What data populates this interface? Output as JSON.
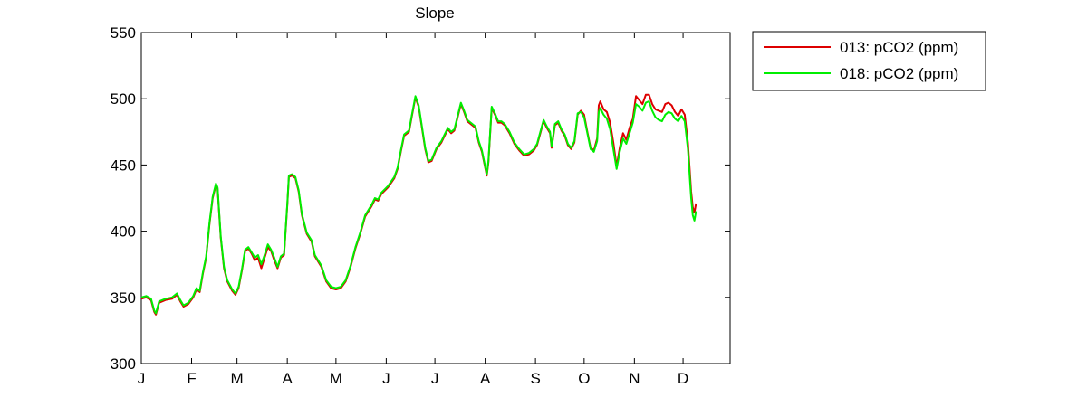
{
  "chart_data": {
    "type": "line",
    "title": "Slope",
    "xlabel": "",
    "ylabel": "",
    "xlim": [
      1,
      364
    ],
    "ylim": [
      300,
      550
    ],
    "yticks": [
      300,
      350,
      400,
      450,
      500,
      550
    ],
    "xticks": [
      {
        "day": 1,
        "label": "J"
      },
      {
        "day": 32,
        "label": "F"
      },
      {
        "day": 60,
        "label": "M"
      },
      {
        "day": 91,
        "label": "A"
      },
      {
        "day": 121,
        "label": "M"
      },
      {
        "day": 152,
        "label": "J"
      },
      {
        "day": 182,
        "label": "J"
      },
      {
        "day": 213,
        "label": "A"
      },
      {
        "day": 244,
        "label": "S"
      },
      {
        "day": 274,
        "label": "O"
      },
      {
        "day": 305,
        "label": "N"
      },
      {
        "day": 335,
        "label": "D"
      }
    ],
    "grid": false,
    "legend_position": "outside-top-right",
    "series": [
      {
        "name": "013: pCO2 (ppm)",
        "color": "#dd0000",
        "points": [
          [
            1,
            349
          ],
          [
            4,
            350
          ],
          [
            7,
            348
          ],
          [
            9,
            339
          ],
          [
            10,
            337
          ],
          [
            12,
            346
          ],
          [
            16,
            348
          ],
          [
            20,
            349
          ],
          [
            23,
            352
          ],
          [
            25,
            347
          ],
          [
            27,
            343
          ],
          [
            30,
            345
          ],
          [
            33,
            350
          ],
          [
            35,
            356
          ],
          [
            37,
            354
          ],
          [
            39,
            368
          ],
          [
            41,
            380
          ],
          [
            43,
            405
          ],
          [
            45,
            425
          ],
          [
            47,
            435
          ],
          [
            48,
            432
          ],
          [
            50,
            395
          ],
          [
            52,
            372
          ],
          [
            54,
            362
          ],
          [
            57,
            355
          ],
          [
            59,
            352
          ],
          [
            61,
            357
          ],
          [
            63,
            370
          ],
          [
            65,
            385
          ],
          [
            67,
            387
          ],
          [
            69,
            383
          ],
          [
            71,
            378
          ],
          [
            73,
            380
          ],
          [
            75,
            372
          ],
          [
            77,
            380
          ],
          [
            79,
            388
          ],
          [
            81,
            385
          ],
          [
            83,
            378
          ],
          [
            85,
            372
          ],
          [
            87,
            380
          ],
          [
            89,
            382
          ],
          [
            91,
            420
          ],
          [
            92,
            441
          ],
          [
            94,
            442
          ],
          [
            96,
            440
          ],
          [
            98,
            430
          ],
          [
            100,
            412
          ],
          [
            103,
            398
          ],
          [
            106,
            392
          ],
          [
            108,
            381
          ],
          [
            112,
            373
          ],
          [
            115,
            362
          ],
          [
            118,
            357
          ],
          [
            121,
            356
          ],
          [
            124,
            357
          ],
          [
            127,
            362
          ],
          [
            130,
            373
          ],
          [
            133,
            387
          ],
          [
            136,
            398
          ],
          [
            139,
            411
          ],
          [
            141,
            415
          ],
          [
            143,
            419
          ],
          [
            145,
            424
          ],
          [
            147,
            423
          ],
          [
            149,
            428
          ],
          [
            153,
            433
          ],
          [
            157,
            440
          ],
          [
            159,
            447
          ],
          [
            161,
            460
          ],
          [
            163,
            472
          ],
          [
            166,
            475
          ],
          [
            168,
            488
          ],
          [
            170,
            501
          ],
          [
            172,
            494
          ],
          [
            174,
            478
          ],
          [
            176,
            462
          ],
          [
            178,
            452
          ],
          [
            180,
            453
          ],
          [
            183,
            462
          ],
          [
            186,
            467
          ],
          [
            188,
            472
          ],
          [
            190,
            477
          ],
          [
            192,
            474
          ],
          [
            194,
            476
          ],
          [
            196,
            486
          ],
          [
            198,
            496
          ],
          [
            200,
            490
          ],
          [
            202,
            483
          ],
          [
            205,
            480
          ],
          [
            207,
            478
          ],
          [
            209,
            467
          ],
          [
            211,
            460
          ],
          [
            213,
            448
          ],
          [
            214,
            442
          ],
          [
            215,
            452
          ],
          [
            217,
            493
          ],
          [
            219,
            488
          ],
          [
            221,
            482
          ],
          [
            223,
            482
          ],
          [
            225,
            480
          ],
          [
            228,
            474
          ],
          [
            231,
            466
          ],
          [
            234,
            461
          ],
          [
            237,
            457
          ],
          [
            240,
            458
          ],
          [
            243,
            461
          ],
          [
            245,
            465
          ],
          [
            247,
            474
          ],
          [
            249,
            483
          ],
          [
            251,
            478
          ],
          [
            253,
            474
          ],
          [
            254,
            463
          ],
          [
            256,
            480
          ],
          [
            258,
            482
          ],
          [
            260,
            476
          ],
          [
            262,
            472
          ],
          [
            264,
            465
          ],
          [
            266,
            462
          ],
          [
            268,
            467
          ],
          [
            270,
            488
          ],
          [
            272,
            491
          ],
          [
            274,
            488
          ],
          [
            276,
            475
          ],
          [
            278,
            463
          ],
          [
            280,
            461
          ],
          [
            282,
            470
          ],
          [
            283,
            495
          ],
          [
            284,
            498
          ],
          [
            286,
            492
          ],
          [
            288,
            490
          ],
          [
            290,
            482
          ],
          [
            292,
            467
          ],
          [
            294,
            449
          ],
          [
            296,
            463
          ],
          [
            298,
            474
          ],
          [
            300,
            469
          ],
          [
            302,
            478
          ],
          [
            304,
            485
          ],
          [
            306,
            502
          ],
          [
            308,
            499
          ],
          [
            310,
            496
          ],
          [
            312,
            503
          ],
          [
            314,
            503
          ],
          [
            316,
            496
          ],
          [
            318,
            492
          ],
          [
            320,
            491
          ],
          [
            322,
            490
          ],
          [
            324,
            496
          ],
          [
            326,
            497
          ],
          [
            328,
            495
          ],
          [
            330,
            490
          ],
          [
            332,
            487
          ],
          [
            334,
            492
          ],
          [
            336,
            488
          ],
          [
            338,
            467
          ],
          [
            340,
            430
          ],
          [
            341,
            418
          ],
          [
            342,
            414
          ],
          [
            343,
            421
          ]
        ]
      },
      {
        "name": "018: pCO2 (ppm)",
        "color": "#00ee00",
        "points": [
          [
            1,
            350
          ],
          [
            4,
            351
          ],
          [
            7,
            349
          ],
          [
            9,
            340
          ],
          [
            10,
            338
          ],
          [
            12,
            347
          ],
          [
            16,
            349
          ],
          [
            20,
            350
          ],
          [
            23,
            353
          ],
          [
            25,
            348
          ],
          [
            27,
            344
          ],
          [
            30,
            346
          ],
          [
            33,
            351
          ],
          [
            35,
            357
          ],
          [
            37,
            355
          ],
          [
            39,
            369
          ],
          [
            41,
            381
          ],
          [
            43,
            406
          ],
          [
            45,
            426
          ],
          [
            47,
            436
          ],
          [
            48,
            433
          ],
          [
            50,
            396
          ],
          [
            52,
            373
          ],
          [
            54,
            363
          ],
          [
            57,
            356
          ],
          [
            59,
            353
          ],
          [
            61,
            358
          ],
          [
            63,
            371
          ],
          [
            65,
            386
          ],
          [
            67,
            388
          ],
          [
            69,
            384
          ],
          [
            71,
            380
          ],
          [
            73,
            382
          ],
          [
            75,
            375
          ],
          [
            77,
            382
          ],
          [
            79,
            390
          ],
          [
            81,
            386
          ],
          [
            83,
            380
          ],
          [
            85,
            373
          ],
          [
            87,
            381
          ],
          [
            89,
            383
          ],
          [
            91,
            421
          ],
          [
            92,
            442
          ],
          [
            94,
            443
          ],
          [
            96,
            441
          ],
          [
            98,
            431
          ],
          [
            100,
            413
          ],
          [
            103,
            399
          ],
          [
            106,
            393
          ],
          [
            108,
            382
          ],
          [
            112,
            374
          ],
          [
            115,
            363
          ],
          [
            118,
            358
          ],
          [
            121,
            357
          ],
          [
            124,
            358
          ],
          [
            127,
            363
          ],
          [
            130,
            374
          ],
          [
            133,
            388
          ],
          [
            136,
            399
          ],
          [
            139,
            412
          ],
          [
            141,
            416
          ],
          [
            143,
            420
          ],
          [
            145,
            425
          ],
          [
            147,
            424
          ],
          [
            149,
            429
          ],
          [
            153,
            434
          ],
          [
            157,
            441
          ],
          [
            159,
            448
          ],
          [
            161,
            461
          ],
          [
            163,
            473
          ],
          [
            166,
            476
          ],
          [
            168,
            489
          ],
          [
            170,
            502
          ],
          [
            172,
            495
          ],
          [
            174,
            479
          ],
          [
            176,
            463
          ],
          [
            178,
            453
          ],
          [
            180,
            454
          ],
          [
            183,
            463
          ],
          [
            186,
            468
          ],
          [
            188,
            473
          ],
          [
            190,
            478
          ],
          [
            192,
            475
          ],
          [
            194,
            477
          ],
          [
            196,
            487
          ],
          [
            198,
            497
          ],
          [
            200,
            491
          ],
          [
            202,
            484
          ],
          [
            205,
            481
          ],
          [
            207,
            479
          ],
          [
            209,
            468
          ],
          [
            211,
            461
          ],
          [
            213,
            449
          ],
          [
            214,
            443
          ],
          [
            215,
            453
          ],
          [
            217,
            494
          ],
          [
            219,
            489
          ],
          [
            221,
            483
          ],
          [
            223,
            483
          ],
          [
            225,
            481
          ],
          [
            228,
            475
          ],
          [
            231,
            467
          ],
          [
            234,
            462
          ],
          [
            237,
            458
          ],
          [
            240,
            459
          ],
          [
            243,
            462
          ],
          [
            245,
            466
          ],
          [
            247,
            475
          ],
          [
            249,
            484
          ],
          [
            251,
            479
          ],
          [
            253,
            475
          ],
          [
            254,
            464
          ],
          [
            256,
            481
          ],
          [
            258,
            483
          ],
          [
            260,
            477
          ],
          [
            262,
            473
          ],
          [
            264,
            466
          ],
          [
            266,
            463
          ],
          [
            268,
            468
          ],
          [
            270,
            489
          ],
          [
            272,
            490
          ],
          [
            274,
            486
          ],
          [
            276,
            474
          ],
          [
            278,
            462
          ],
          [
            280,
            460
          ],
          [
            282,
            468
          ],
          [
            283,
            490
          ],
          [
            284,
            493
          ],
          [
            286,
            488
          ],
          [
            288,
            485
          ],
          [
            290,
            477
          ],
          [
            292,
            462
          ],
          [
            294,
            447
          ],
          [
            296,
            460
          ],
          [
            298,
            470
          ],
          [
            300,
            466
          ],
          [
            302,
            474
          ],
          [
            304,
            482
          ],
          [
            306,
            496
          ],
          [
            308,
            494
          ],
          [
            310,
            491
          ],
          [
            312,
            497
          ],
          [
            314,
            498
          ],
          [
            316,
            491
          ],
          [
            318,
            486
          ],
          [
            320,
            484
          ],
          [
            322,
            483
          ],
          [
            324,
            488
          ],
          [
            326,
            490
          ],
          [
            328,
            489
          ],
          [
            330,
            485
          ],
          [
            332,
            483
          ],
          [
            334,
            487
          ],
          [
            336,
            483
          ],
          [
            338,
            462
          ],
          [
            340,
            425
          ],
          [
            341,
            412
          ],
          [
            342,
            408
          ],
          [
            343,
            415
          ]
        ]
      }
    ]
  }
}
